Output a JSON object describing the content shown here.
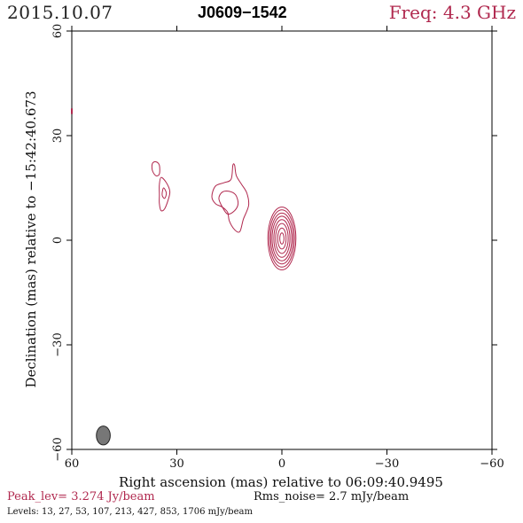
{
  "header": {
    "date": "2015.10.07",
    "source": "J0609−1542",
    "freq": "Freq: 4.3 GHz"
  },
  "footer": {
    "peak": "Peak_lev=  3.274 Jy/beam",
    "rms": "Rms_noise=  2.7 mJy/beam",
    "levels": "Levels:  13,  27,  53, 107, 213, 427, 853, 1706 mJy/beam"
  },
  "colors": {
    "contour": "#b0284e",
    "beam": "#777777",
    "axis": "#000000"
  },
  "chart_data": {
    "type": "contour",
    "xlabel": "Right ascension (mas) relative to 06:09:40.9495",
    "ylabel": "Declination (mas) relative to −15:42:40.673",
    "xlim": [
      60,
      -60
    ],
    "ylim": [
      -60,
      60
    ],
    "x_ticks": [
      60,
      30,
      0,
      -30,
      -60
    ],
    "y_ticks": [
      -60,
      -30,
      0,
      30,
      60
    ],
    "x_tick_labels": [
      "60",
      "30",
      "0",
      "−30",
      "−60"
    ],
    "y_tick_labels": [
      "−60",
      "−30",
      "0",
      "30",
      "60"
    ],
    "grid": false,
    "core": {
      "x": 0,
      "y": 0.5,
      "levels_semi_axes": [
        [
          4.0,
          9.0
        ],
        [
          3.6,
          8.2
        ],
        [
          3.2,
          7.3
        ],
        [
          2.8,
          6.4
        ],
        [
          2.3,
          5.4
        ],
        [
          1.8,
          4.3
        ],
        [
          1.2,
          3.0
        ],
        [
          0.6,
          1.6
        ]
      ]
    },
    "jet_components": [
      {
        "name": "inner-jet-outer",
        "points": [
          [
            13.5,
            21.5
          ],
          [
            13.0,
            18.5
          ],
          [
            11.5,
            16.0
          ],
          [
            10.0,
            13.5
          ],
          [
            9.5,
            10.0
          ],
          [
            11.0,
            6.0
          ],
          [
            12.0,
            2.5
          ],
          [
            13.5,
            3.0
          ],
          [
            15.0,
            5.5
          ],
          [
            15.5,
            8.0
          ],
          [
            17.0,
            9.5
          ],
          [
            19.0,
            10.5
          ],
          [
            20.0,
            12.5
          ],
          [
            19.0,
            15.5
          ],
          [
            16.5,
            16.5
          ],
          [
            14.5,
            17.5
          ],
          [
            14.0,
            21.5
          ]
        ]
      },
      {
        "name": "inner-jet-inner",
        "points": [
          [
            15.0,
            14.0
          ],
          [
            13.2,
            13.0
          ],
          [
            12.5,
            10.5
          ],
          [
            13.5,
            8.5
          ],
          [
            15.5,
            7.5
          ],
          [
            17.0,
            9.5
          ],
          [
            18.0,
            12.0
          ],
          [
            17.0,
            13.8
          ]
        ]
      },
      {
        "name": "outer-jet-a",
        "points": [
          [
            34.5,
            18.0
          ],
          [
            33.0,
            16.5
          ],
          [
            32.0,
            14.0
          ],
          [
            32.5,
            11.5
          ],
          [
            33.5,
            9.0
          ],
          [
            34.5,
            8.5
          ],
          [
            35.0,
            10.5
          ],
          [
            35.0,
            13.0
          ],
          [
            35.0,
            16.0
          ]
        ]
      },
      {
        "name": "outer-jet-b",
        "points": [
          [
            33.8,
            15.0
          ],
          [
            33.0,
            13.5
          ],
          [
            33.5,
            12.0
          ],
          [
            34.2,
            13.0
          ]
        ]
      },
      {
        "name": "outer-jet-c",
        "points": [
          [
            36.0,
            22.5
          ],
          [
            35.0,
            21.5
          ],
          [
            35.0,
            19.0
          ],
          [
            36.0,
            18.5
          ],
          [
            37.0,
            20.0
          ],
          [
            37.0,
            22.0
          ]
        ]
      }
    ],
    "beam": {
      "x": 51.0,
      "y": -56.0,
      "major": 2.7,
      "minor": 1.1,
      "pa_deg": 0
    },
    "edge_mark": {
      "x": 60,
      "y": 37
    }
  }
}
